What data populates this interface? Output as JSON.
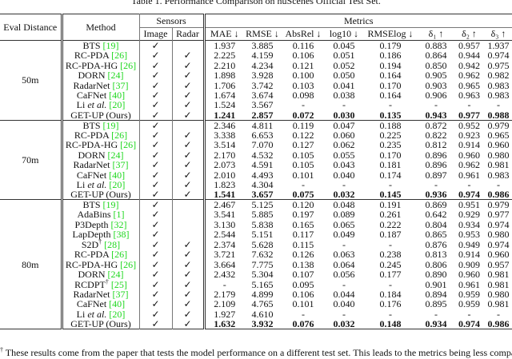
{
  "caption": "Table 1. Performance Comparison on nuScenes Official Test Set.",
  "headers": {
    "eval_distance": "Eval Distance",
    "method": "Method",
    "sensors": "Sensors",
    "image": "Image",
    "radar": "Radar",
    "metrics": "Metrics",
    "metric_cols": [
      "MAE ↓",
      "RMSE ↓",
      "AbsRel ↓",
      "log10 ↓",
      "RMSElog ↓",
      "δ₁ ↑",
      "δ₂ ↑",
      "δ₃ ↑"
    ]
  },
  "check_glyph": "✓",
  "citation_color": "#1ed81e",
  "sections": [
    {
      "distance": "50m",
      "rows": [
        {
          "name": "BTS",
          "cite": "[19]",
          "image": true,
          "radar": false,
          "values": [
            "1.937",
            "3.885",
            "0.116",
            "0.045",
            "0.179",
            "0.883",
            "0.957",
            "1.937"
          ]
        },
        {
          "name": "RC-PDA",
          "cite": "[26]",
          "image": true,
          "radar": true,
          "values": [
            "2.225",
            "4.159",
            "0.106",
            "0.051",
            "0.186",
            "0.864",
            "0.944",
            "0.974"
          ]
        },
        {
          "name": "RC-PDA-HG",
          "cite": "[26]",
          "image": true,
          "radar": true,
          "values": [
            "2.210",
            "4.234",
            "0.121",
            "0.052",
            "0.194",
            "0.850",
            "0.942",
            "0.975"
          ]
        },
        {
          "name": "DORN",
          "cite": "[24]",
          "image": true,
          "radar": true,
          "values": [
            "1.898",
            "3.928",
            "0.100",
            "0.050",
            "0.164",
            "0.905",
            "0.962",
            "0.982"
          ]
        },
        {
          "name": "RadarNet",
          "cite": "[37]",
          "image": true,
          "radar": true,
          "values": [
            "1.706",
            "3.742",
            "0.103",
            "0.041",
            "0.170",
            "0.903",
            "0.965",
            "0.983"
          ]
        },
        {
          "name": "CaFNet",
          "cite": "[40]",
          "image": true,
          "radar": true,
          "values": [
            "1.674",
            "3.674",
            "0.098",
            "0.038",
            "0.164",
            "0.906",
            "0.963",
            "0.983"
          ]
        },
        {
          "name": "Li",
          "italic": "et al.",
          "cite": "[20]",
          "image": true,
          "radar": true,
          "values": [
            "1.524",
            "3.567",
            "-",
            "-",
            "-",
            "-",
            "-",
            "-"
          ]
        },
        {
          "name": "GET-UP (Ours)",
          "image": true,
          "radar": true,
          "bold": true,
          "values": [
            "1.241",
            "2.857",
            "0.072",
            "0.030",
            "0.135",
            "0.943",
            "0.977",
            "0.988"
          ]
        }
      ]
    },
    {
      "distance": "70m",
      "rows": [
        {
          "name": "BTS",
          "cite": "[19]",
          "image": true,
          "radar": false,
          "values": [
            "2.346",
            "4.811",
            "0.119",
            "0.047",
            "0.188",
            "0.872",
            "0.952",
            "0.979"
          ]
        },
        {
          "name": "RC-PDA",
          "cite": "[26]",
          "image": true,
          "radar": true,
          "values": [
            "3.338",
            "6.653",
            "0.122",
            "0.060",
            "0.225",
            "0.822",
            "0.923",
            "0.965"
          ]
        },
        {
          "name": "RC-PDA-HG",
          "cite": "[26]",
          "image": true,
          "radar": true,
          "values": [
            "3.514",
            "7.070",
            "0.127",
            "0.062",
            "0.235",
            "0.812",
            "0.914",
            "0.960"
          ]
        },
        {
          "name": "DORN",
          "cite": "[24]",
          "image": true,
          "radar": true,
          "values": [
            "2.170",
            "4.532",
            "0.105",
            "0.055",
            "0.170",
            "0.896",
            "0.960",
            "0.980"
          ]
        },
        {
          "name": "RadarNet",
          "cite": "[37]",
          "image": true,
          "radar": true,
          "values": [
            "2.073",
            "4.591",
            "0.105",
            "0.043",
            "0.181",
            "0.896",
            "0.962",
            "0.981"
          ]
        },
        {
          "name": "CaFNet",
          "cite": "[40]",
          "image": true,
          "radar": true,
          "values": [
            "2.010",
            "4.493",
            "0.101",
            "0.040",
            "0.174",
            "0.897",
            "0.961",
            "0.983"
          ]
        },
        {
          "name": "Li",
          "italic": "et al.",
          "cite": "[20]",
          "image": true,
          "radar": true,
          "values": [
            "1.823",
            "4.304",
            "-",
            "-",
            "-",
            "-",
            "-",
            "-"
          ]
        },
        {
          "name": "GET-UP (Ours)",
          "image": true,
          "radar": true,
          "bold": true,
          "values": [
            "1.541",
            "3.657",
            "0.075",
            "0.032",
            "0.145",
            "0.936",
            "0.974",
            "0.986"
          ]
        }
      ]
    },
    {
      "distance": "80m",
      "rows": [
        {
          "name": "BTS",
          "cite": "[19]",
          "image": true,
          "radar": false,
          "values": [
            "2.467",
            "5.125",
            "0.120",
            "0.048",
            "0.191",
            "0.869",
            "0.951",
            "0.979"
          ]
        },
        {
          "name": "AdaBins",
          "cite": "[1]",
          "image": true,
          "radar": false,
          "values": [
            "3.541",
            "5.885",
            "0.197",
            "0.089",
            "0.261",
            "0.642",
            "0.929",
            "0.977"
          ]
        },
        {
          "name": "P3Depth",
          "cite": "[32]",
          "image": true,
          "radar": false,
          "values": [
            "3.130",
            "5.838",
            "0.165",
            "0.065",
            "0.222",
            "0.804",
            "0.934",
            "0.974"
          ]
        },
        {
          "name": "LapDepth",
          "cite": "[38]",
          "image": true,
          "radar": false,
          "values": [
            "2.544",
            "5.151",
            "0.117",
            "0.049",
            "0.187",
            "0.865",
            "0.953",
            "0.980"
          ]
        },
        {
          "name": "S2D",
          "sup": "†",
          "cite": "[28]",
          "image": true,
          "radar": true,
          "values": [
            "2.374",
            "5.628",
            "0.115",
            "-",
            "-",
            "0.876",
            "0.949",
            "0.974"
          ]
        },
        {
          "name": "RC-PDA",
          "cite": "[26]",
          "image": true,
          "radar": true,
          "values": [
            "3.721",
            "7.632",
            "0.126",
            "0.063",
            "0.238",
            "0.813",
            "0.914",
            "0.960"
          ]
        },
        {
          "name": "RC-PDA-HG",
          "cite": "[26]",
          "image": true,
          "radar": true,
          "values": [
            "3.664",
            "7.775",
            "0.138",
            "0.064",
            "0.245",
            "0.806",
            "0.909",
            "0.957"
          ]
        },
        {
          "name": "DORN",
          "cite": "[24]",
          "image": true,
          "radar": true,
          "values": [
            "2.432",
            "5.304",
            "0.107",
            "0.056",
            "0.177",
            "0.890",
            "0.960",
            "0.981"
          ]
        },
        {
          "name": "RCDPT",
          "sup": "†",
          "cite": "[25]",
          "image": true,
          "radar": true,
          "values": [
            "-",
            "5.165",
            "0.095",
            "-",
            "-",
            "0.901",
            "0.961",
            "0.981"
          ]
        },
        {
          "name": "RadarNet",
          "cite": "[37]",
          "image": true,
          "radar": true,
          "values": [
            "2.179",
            "4.899",
            "0.106",
            "0.044",
            "0.184",
            "0.894",
            "0.959",
            "0.980"
          ]
        },
        {
          "name": "CaFNet",
          "cite": "[40]",
          "image": true,
          "radar": true,
          "values": [
            "2.109",
            "4.765",
            "0.101",
            "0.040",
            "0.176",
            "0.895",
            "0.959",
            "0.981"
          ]
        },
        {
          "name": "Li",
          "italic": "et al.",
          "cite": "[20]",
          "image": true,
          "radar": true,
          "values": [
            "1.927",
            "4.610",
            "-",
            "-",
            "-",
            "-",
            "-",
            "-"
          ]
        },
        {
          "name": "GET-UP (Ours)",
          "image": true,
          "radar": true,
          "bold": true,
          "values": [
            "1.632",
            "3.932",
            "0.076",
            "0.032",
            "0.148",
            "0.934",
            "0.974",
            "0.986"
          ]
        }
      ]
    }
  ],
  "footnote": {
    "mark": "†",
    "text": " These results come from the paper that tests the model performance on a different test set. This leads to the metrics being less comparable."
  }
}
